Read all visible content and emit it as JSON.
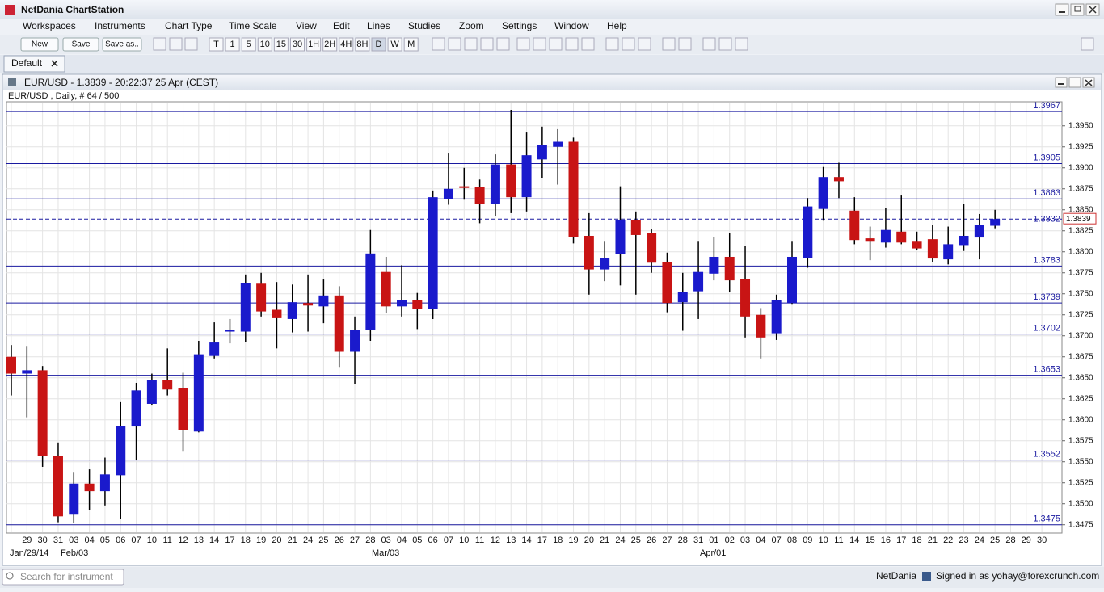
{
  "app_title": "NetDania ChartStation",
  "menu": [
    "Workspaces",
    "Instruments",
    "Chart Type",
    "Time Scale",
    "View",
    "Edit",
    "Lines",
    "Studies",
    "Zoom",
    "Settings",
    "Window",
    "Help"
  ],
  "toolbar_buttons": [
    "New",
    "Save",
    "Save as.."
  ],
  "timeframes": [
    "T",
    "1",
    "5",
    "10",
    "15",
    "30",
    "1H",
    "2H",
    "4H",
    "8H",
    "D",
    "W",
    "M"
  ],
  "tab": "Default",
  "chart_window_title": "EUR/USD - 1.3839 - 20:22:37  25 Apr (CEST)",
  "chart_data": {
    "type": "candlestick",
    "subtitle": "EUR/USD , Daily, # 64 / 500",
    "categories": [
      null,
      "29",
      "30",
      "31",
      "03",
      "04",
      "05",
      "06",
      "07",
      "10",
      "11",
      "12",
      "13",
      "14",
      "17",
      "18",
      "19",
      "20",
      "21",
      "24",
      "25",
      "26",
      "27",
      "28",
      "03",
      "04",
      "05",
      "06",
      "07",
      "10",
      "11",
      "12",
      "13",
      "14",
      "17",
      "18",
      "19",
      "20",
      "21",
      "24",
      "25",
      "26",
      "27",
      "28",
      "31",
      "01",
      "02",
      "03",
      "04",
      "07",
      "08",
      "09",
      "10",
      "11",
      "14",
      "15",
      "16",
      "17",
      "18",
      "21",
      "22",
      "23",
      "24",
      "25",
      "28",
      "29",
      "30"
    ],
    "period_labels": [
      "Jan/29/14",
      "Feb/03",
      "Mar/03",
      "Apr/01"
    ],
    "open": [
      1.3675,
      1.3655,
      1.3659,
      1.3557,
      1.3487,
      1.3524,
      1.3515,
      1.3534,
      1.3592,
      1.3619,
      1.3647,
      1.3638,
      1.3586,
      1.3676,
      1.3705,
      1.3705,
      1.3762,
      1.3731,
      1.372,
      1.3739,
      1.3735,
      1.3748,
      1.3681,
      1.3707,
      1.3776,
      1.3735,
      1.3743,
      1.3732,
      1.3863,
      1.3878,
      1.3877,
      1.3857,
      1.3904,
      1.3865,
      1.391,
      1.3925,
      1.3931,
      1.3819,
      1.3779,
      1.3797,
      1.3838,
      1.3822,
      1.3788,
      1.374,
      1.3753,
      1.3774,
      1.3794,
      1.3768,
      1.3725,
      1.3703,
      1.3739,
      1.3793,
      1.3851,
      1.3889,
      1.3849,
      1.3816,
      1.3811,
      1.3824,
      1.3812,
      1.3815,
      1.3791,
      1.3808,
      1.3817,
      1.3831,
      null,
      null,
      null
    ],
    "high": [
      1.3689,
      1.3687,
      1.3664,
      1.3573,
      1.3537,
      1.3541,
      1.3555,
      1.3621,
      1.3644,
      1.3655,
      1.3685,
      1.3656,
      1.3694,
      1.3716,
      1.372,
      1.3773,
      1.3775,
      1.3764,
      1.3761,
      1.3773,
      1.3767,
      1.3759,
      1.3723,
      1.3826,
      1.3794,
      1.3784,
      1.3751,
      1.3873,
      1.3917,
      1.39,
      1.3886,
      1.3916,
      1.3969,
      1.3942,
      1.3949,
      1.3946,
      1.3936,
      1.3846,
      1.3812,
      1.3878,
      1.3848,
      1.3827,
      1.3799,
      1.3775,
      1.3812,
      1.3818,
      1.3822,
      1.3807,
      1.3733,
      1.3749,
      1.3812,
      1.3864,
      1.3901,
      1.3906,
      1.3865,
      1.383,
      1.3852,
      1.3867,
      1.3824,
      1.3832,
      1.383,
      1.3857,
      1.3845,
      1.385,
      null,
      null,
      null
    ],
    "low": [
      1.3629,
      1.3603,
      1.3544,
      1.3478,
      1.3477,
      1.3493,
      1.3498,
      1.3482,
      1.3552,
      1.3617,
      1.3629,
      1.3562,
      1.3585,
      1.3673,
      1.3691,
      1.3693,
      1.3723,
      1.3685,
      1.3704,
      1.3705,
      1.3715,
      1.3662,
      1.3643,
      1.3694,
      1.3727,
      1.3723,
      1.3708,
      1.372,
      1.3856,
      1.3862,
      1.3834,
      1.3843,
      1.3846,
      1.3848,
      1.3888,
      1.388,
      1.381,
      1.3749,
      1.3765,
      1.376,
      1.3749,
      1.3775,
      1.3728,
      1.3706,
      1.372,
      1.3766,
      1.3752,
      1.3698,
      1.3673,
      1.3695,
      1.3737,
      1.3781,
      1.3837,
      1.3864,
      1.3809,
      1.379,
      1.3805,
      1.3809,
      1.3802,
      1.3788,
      1.3785,
      1.3801,
      1.3791,
      1.3828,
      null,
      null,
      null
    ],
    "close": [
      1.3655,
      1.3659,
      1.3557,
      1.3485,
      1.3524,
      1.3515,
      1.3535,
      1.3593,
      1.3635,
      1.3647,
      1.3636,
      1.3588,
      1.3678,
      1.3692,
      1.3707,
      1.3763,
      1.3729,
      1.3721,
      1.374,
      1.3736,
      1.3748,
      1.3681,
      1.3707,
      1.3798,
      1.3735,
      1.3743,
      1.3732,
      1.3865,
      1.3875,
      1.3876,
      1.3857,
      1.3904,
      1.3865,
      1.3915,
      1.3927,
      1.3931,
      1.3818,
      1.3779,
      1.3793,
      1.3838,
      1.382,
      1.3787,
      1.3739,
      1.3752,
      1.3776,
      1.3794,
      1.3766,
      1.3723,
      1.3698,
      1.3743,
      1.3794,
      1.3854,
      1.3889,
      1.3884,
      1.3814,
      1.3812,
      1.3826,
      1.3811,
      1.3804,
      1.3792,
      1.3809,
      1.3819,
      1.3832,
      1.3839,
      null,
      null,
      null
    ],
    "up_color": "#1a1acc",
    "down_color": "#c81414",
    "ylim": [
      1.3468,
      1.3969
    ],
    "yticks": [
      {
        "value": 1.395,
        "label": "1.3950"
      },
      1.3925,
      {
        "value": 1.39,
        "label": "1.3900"
      },
      1.3875,
      {
        "value": 1.385,
        "label": "1.3850"
      },
      1.3825,
      {
        "value": 1.38,
        "label": "1.3800"
      },
      1.3775,
      {
        "value": 1.375,
        "label": "1.3750"
      },
      1.3725,
      {
        "value": 1.37,
        "label": "1.3700"
      },
      1.3675,
      {
        "value": 1.365,
        "label": "1.3650"
      },
      1.3625,
      {
        "value": 1.36,
        "label": "1.3600"
      },
      1.3575,
      {
        "value": 1.355,
        "label": "1.3550"
      },
      1.3525,
      {
        "value": 1.35,
        "label": "1.3500"
      },
      1.3475
    ],
    "levels": [
      1.3967,
      1.3905,
      1.3863,
      1.3832,
      1.3783,
      1.3739,
      1.3702,
      1.3653,
      1.3552,
      1.3475
    ],
    "level_color": "#1a1aa0",
    "current_price": 1.3839,
    "grid": true
  },
  "status": {
    "search_placeholder": "Search for instrument",
    "brand": "NetDania",
    "signed_in": "Signed in as yohay@forexcrunch.com"
  }
}
